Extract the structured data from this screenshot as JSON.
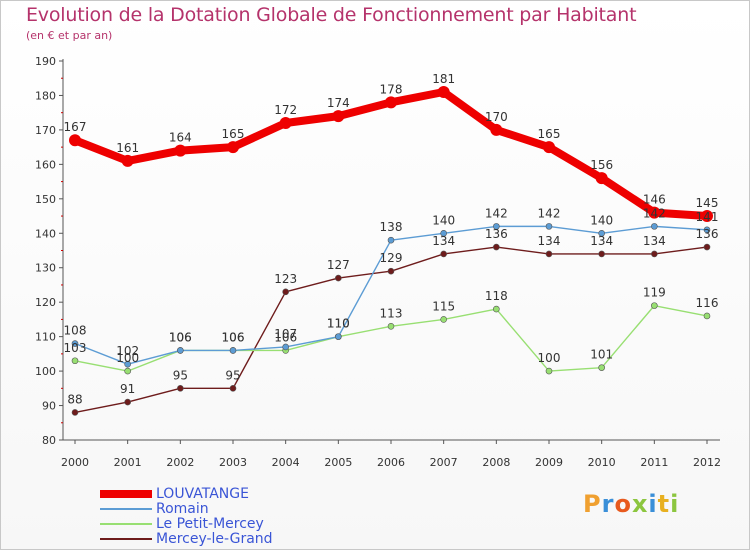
{
  "chart_data": {
    "type": "line",
    "title": "Evolution de la Dotation Globale de Fonctionnement par Habitant",
    "subtitle": "(en € et par an)",
    "xlabel": "",
    "ylabel": "",
    "ylim": [
      80,
      190
    ],
    "yticks": [
      80,
      90,
      100,
      110,
      120,
      130,
      140,
      150,
      160,
      170,
      180,
      190
    ],
    "categories": [
      "2000",
      "2001",
      "2002",
      "2003",
      "2004",
      "2005",
      "2006",
      "2007",
      "2008",
      "2009",
      "2010",
      "2011",
      "2012"
    ],
    "series": [
      {
        "name": "LOUVATANGE",
        "color": "#ee0000",
        "values": [
          167,
          161,
          164,
          165,
          172,
          174,
          178,
          181,
          170,
          165,
          156,
          146,
          145
        ]
      },
      {
        "name": "Romain",
        "color": "#5c9cd4",
        "values": [
          108,
          102,
          106,
          106,
          107,
          110,
          138,
          140,
          142,
          142,
          140,
          142,
          141
        ]
      },
      {
        "name": "Le Petit-Mercey",
        "color": "#98df72",
        "values": [
          103,
          100,
          106,
          106,
          106,
          110,
          113,
          115,
          118,
          100,
          101,
          119,
          116
        ]
      },
      {
        "name": "Mercey-le-Grand",
        "color": "#6e1c1c",
        "values": [
          88,
          91,
          95,
          95,
          123,
          127,
          129,
          134,
          136,
          134,
          134,
          134,
          136
        ]
      }
    ]
  },
  "brand": {
    "letters": [
      "P",
      "r",
      "o",
      "x",
      "i",
      "t",
      "i"
    ],
    "colors": [
      "#f0a030",
      "#3a8fd8",
      "#e85a1e",
      "#8cc63f",
      "#3a8fd8",
      "#e8b020",
      "#8cc63f"
    ]
  }
}
